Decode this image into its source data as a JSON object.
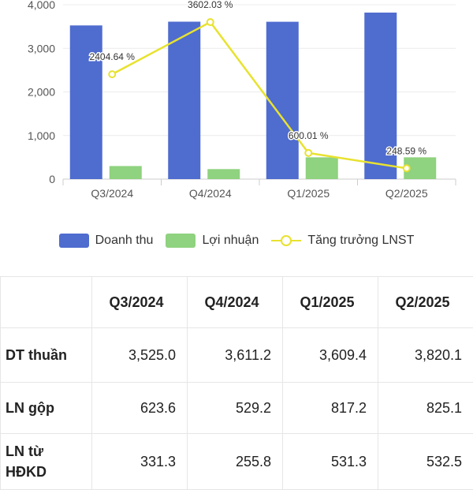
{
  "chart_data": {
    "type": "bar",
    "categories": [
      "Q3/2024",
      "Q4/2024",
      "Q1/2025",
      "Q2/2025"
    ],
    "series": [
      {
        "name": "Doanh thu",
        "type": "bar",
        "color": "#4f6ccf",
        "values": [
          3525.0,
          3611.2,
          3609.4,
          3820.1
        ]
      },
      {
        "name": "Lợi nhuận",
        "type": "bar",
        "color": "#8fd27f",
        "values": [
          300,
          230,
          500,
          500
        ]
      },
      {
        "name": "Tăng trưởng LNST",
        "type": "line",
        "color": "#e8e22f",
        "values": [
          2404.64,
          3602.03,
          600.01,
          248.59
        ],
        "labels": [
          "2404.64 %",
          "3602.03 %",
          "600.01 %",
          "248.59 %"
        ]
      }
    ],
    "y_ticks": [
      "0",
      "1,000",
      "2,000",
      "3,000",
      "4,000"
    ],
    "ylim": [
      0,
      4000
    ]
  },
  "legend": {
    "revenue": "Doanh thu",
    "profit": "Lợi nhuận",
    "growth": "Tăng trưởng LNST"
  },
  "table": {
    "headers": [
      "",
      "Q3/2024",
      "Q4/2024",
      "Q1/2025",
      "Q2/2025"
    ],
    "rows": [
      {
        "label": "DT thuần",
        "values": [
          "3,525.0",
          "3,611.2",
          "3,609.4",
          "3,820.1"
        ]
      },
      {
        "label": "LN gộp",
        "values": [
          "623.6",
          "529.2",
          "817.2",
          "825.1"
        ]
      },
      {
        "label": "LN từ HĐKD",
        "values": [
          "331.3",
          "255.8",
          "531.3",
          "532.5"
        ]
      }
    ]
  }
}
